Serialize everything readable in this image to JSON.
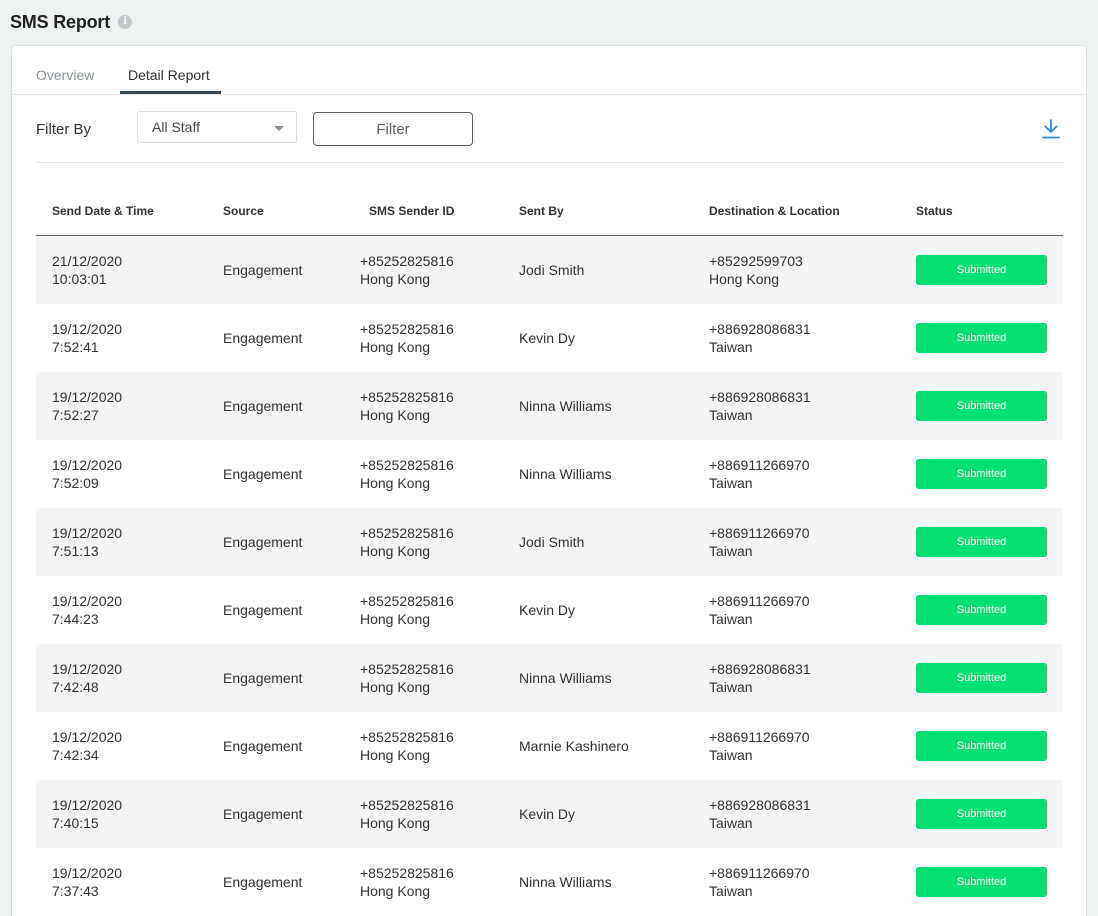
{
  "header": {
    "title": "SMS Report",
    "info_glyph": "i"
  },
  "tabs": [
    {
      "label": "Overview"
    },
    {
      "label": "Detail Report"
    }
  ],
  "filter": {
    "label": "Filter By",
    "staff_select_value": "All Staff",
    "button_label": "Filter"
  },
  "colors": {
    "accent": "#394a56",
    "status_green": "#05de72",
    "download_blue": "#2f8fd8"
  },
  "table": {
    "headers": {
      "date": "Send Date & Time",
      "source": "Source",
      "sender": "SMS Sender ID",
      "by": "Sent By",
      "dest": "Destination & Location",
      "status": "Status"
    },
    "rows": [
      {
        "date": "21/12/2020",
        "time": "10:03:01",
        "source": "Engagement",
        "sender_id": "+85252825816",
        "sender_loc": "Hong Kong",
        "sent_by": "Jodi Smith",
        "dest_num": "+85292599703",
        "dest_loc": "Hong Kong",
        "status": "Submitted"
      },
      {
        "date": "19/12/2020",
        "time": "7:52:41",
        "source": "Engagement",
        "sender_id": "+85252825816",
        "sender_loc": "Hong Kong",
        "sent_by": "Kevin Dy",
        "dest_num": "+886928086831",
        "dest_loc": "Taiwan",
        "status": "Submitted"
      },
      {
        "date": "19/12/2020",
        "time": "7:52:27",
        "source": "Engagement",
        "sender_id": "+85252825816",
        "sender_loc": "Hong Kong",
        "sent_by": "Ninna Williams",
        "dest_num": "+886928086831",
        "dest_loc": "Taiwan",
        "status": "Submitted"
      },
      {
        "date": "19/12/2020",
        "time": "7:52:09",
        "source": "Engagement",
        "sender_id": "+85252825816",
        "sender_loc": "Hong Kong",
        "sent_by": "Ninna Williams",
        "dest_num": "+886911266970",
        "dest_loc": "Taiwan",
        "status": "Submitted"
      },
      {
        "date": "19/12/2020",
        "time": "7:51:13",
        "source": "Engagement",
        "sender_id": "+85252825816",
        "sender_loc": "Hong Kong",
        "sent_by": "Jodi Smith",
        "dest_num": "+886911266970",
        "dest_loc": "Taiwan",
        "status": "Submitted"
      },
      {
        "date": "19/12/2020",
        "time": "7:44:23",
        "source": "Engagement",
        "sender_id": "+85252825816",
        "sender_loc": "Hong Kong",
        "sent_by": "Kevin Dy",
        "dest_num": "+886911266970",
        "dest_loc": "Taiwan",
        "status": "Submitted"
      },
      {
        "date": "19/12/2020",
        "time": "7:42:48",
        "source": "Engagement",
        "sender_id": "+85252825816",
        "sender_loc": "Hong Kong",
        "sent_by": "Ninna Williams",
        "dest_num": "+886928086831",
        "dest_loc": "Taiwan",
        "status": "Submitted"
      },
      {
        "date": "19/12/2020",
        "time": "7:42:34",
        "source": "Engagement",
        "sender_id": "+85252825816",
        "sender_loc": "Hong Kong",
        "sent_by": "Marnie Kashinero",
        "dest_num": "+886911266970",
        "dest_loc": "Taiwan",
        "status": "Submitted"
      },
      {
        "date": "19/12/2020",
        "time": "7:40:15",
        "source": "Engagement",
        "sender_id": "+85252825816",
        "sender_loc": "Hong Kong",
        "sent_by": "Kevin Dy",
        "dest_num": "+886928086831",
        "dest_loc": "Taiwan",
        "status": "Submitted"
      },
      {
        "date": "19/12/2020",
        "time": "7:37:43",
        "source": "Engagement",
        "sender_id": "+85252825816",
        "sender_loc": "Hong Kong",
        "sent_by": "Ninna Williams",
        "dest_num": "+886911266970",
        "dest_loc": "Taiwan",
        "status": "Submitted"
      }
    ]
  }
}
